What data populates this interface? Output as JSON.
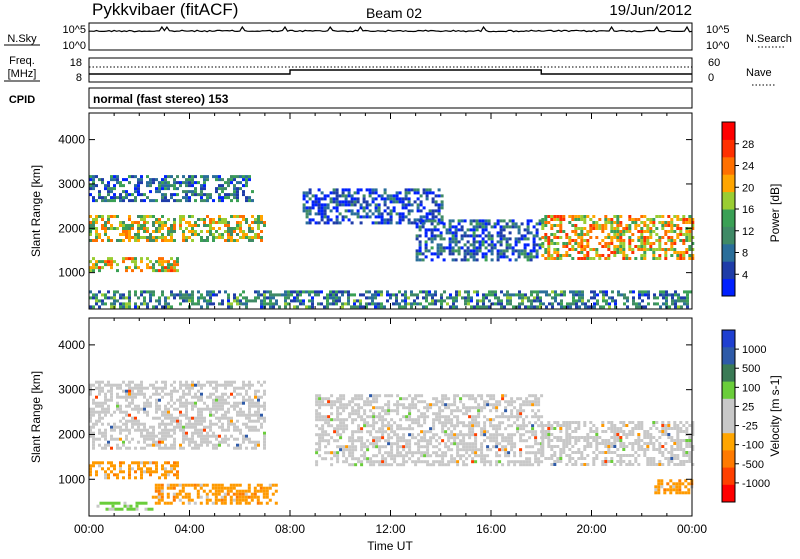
{
  "header": {
    "station": "Pykkvibaer (fitACF)",
    "beam": "Beam 02",
    "date": "19/Jun/2012"
  },
  "strip_labels": {
    "nsky": "N.Sky",
    "nsky_tick_hi": "10^5",
    "nsky_tick_lo": "10^0",
    "nsearch": "N.Search",
    "freq_line1": "Freq.",
    "freq_line2": "[MHz]",
    "freq_tick_hi": "18",
    "freq_tick_lo": "8",
    "nave": "Nave",
    "nave_tick_hi": "60",
    "nave_tick_lo": "0",
    "cpid": "CPID",
    "cpid_text": "normal (fast stereo) 153"
  },
  "colors": {
    "power_scale": [
      "#0020ff",
      "#1e3ca8",
      "#2a6e9a",
      "#3f8a66",
      "#3aa055",
      "#9acd32",
      "#ffa500",
      "#ff7000",
      "#ff3000",
      "#ff0000"
    ],
    "velocity_scale": [
      "#1f3fd0",
      "#2e5aa8",
      "#3a7a55",
      "#6acd3a",
      "#c8c8c8",
      "#c8c8c8",
      "#ffa500",
      "#ff7a00",
      "#ff4000",
      "#ff0000"
    ],
    "background_scatter": "#c8c8c8"
  },
  "chart_data": [
    {
      "type": "heatmap",
      "panel": "power",
      "xlabel": "",
      "ylabel": "Slant Range [km]",
      "xlim": [
        "00:00",
        "00:00"
      ],
      "ylim": [
        180,
        4600
      ],
      "yticks": [
        1000,
        2000,
        3000,
        4000
      ],
      "colorbar": {
        "label": "Power [dB]",
        "ticks": [
          "4",
          "8",
          "12",
          "16",
          "20",
          "24",
          "28"
        ],
        "range": [
          0,
          30
        ]
      },
      "echo_bands": [
        {
          "from_h": 0.0,
          "to_h": 7.0,
          "range_km": [
            1700,
            2300
          ],
          "level": 0.55
        },
        {
          "from_h": 0.0,
          "to_h": 3.5,
          "range_km": [
            1050,
            1350
          ],
          "level": 0.6
        },
        {
          "from_h": 0.0,
          "to_h": 6.5,
          "range_km": [
            2600,
            3200
          ],
          "level": 0.25
        },
        {
          "from_h": 0.0,
          "to_h": 24.0,
          "range_km": [
            200,
            600
          ],
          "level": 0.3
        },
        {
          "from_h": 8.5,
          "to_h": 14.0,
          "range_km": [
            2100,
            2900
          ],
          "level": 0.15
        },
        {
          "from_h": 13.0,
          "to_h": 18.0,
          "range_km": [
            1300,
            2200
          ],
          "level": 0.2
        },
        {
          "from_h": 18.0,
          "to_h": 24.0,
          "range_km": [
            1300,
            2300
          ],
          "level": 0.65
        }
      ]
    },
    {
      "type": "heatmap",
      "panel": "velocity",
      "xlabel": "Time UT",
      "ylabel": "Slant Range [km]",
      "xlim": [
        "00:00",
        "00:00"
      ],
      "ylim": [
        180,
        4600
      ],
      "xticks": [
        "00:00",
        "04:00",
        "08:00",
        "12:00",
        "16:00",
        "20:00",
        "00:00"
      ],
      "yticks": [
        1000,
        2000,
        3000,
        4000
      ],
      "colorbar": {
        "label": "Velocity [m s-1]",
        "ticks": [
          "1000",
          "500",
          "100",
          "25",
          "-25",
          "-100",
          "-500",
          "-1000"
        ]
      },
      "echo_bands": [
        {
          "from_h": 0.0,
          "to_h": 7.0,
          "range_km": [
            1700,
            3200
          ],
          "class": "near-zero"
        },
        {
          "from_h": 0.0,
          "to_h": 3.5,
          "range_km": [
            1000,
            1400
          ],
          "class": "negative-orange"
        },
        {
          "from_h": 0.3,
          "to_h": 2.5,
          "range_km": [
            350,
            500
          ],
          "class": "positive-green"
        },
        {
          "from_h": 2.5,
          "to_h": 7.5,
          "range_km": [
            450,
            900
          ],
          "class": "negative-orange"
        },
        {
          "from_h": 9.0,
          "to_h": 18.0,
          "range_km": [
            1300,
            2900
          ],
          "class": "near-zero"
        },
        {
          "from_h": 18.0,
          "to_h": 24.0,
          "range_km": [
            1300,
            2300
          ],
          "class": "near-zero"
        },
        {
          "from_h": 22.5,
          "to_h": 24.0,
          "range_km": [
            700,
            1000
          ],
          "class": "negative-orange"
        }
      ]
    }
  ]
}
